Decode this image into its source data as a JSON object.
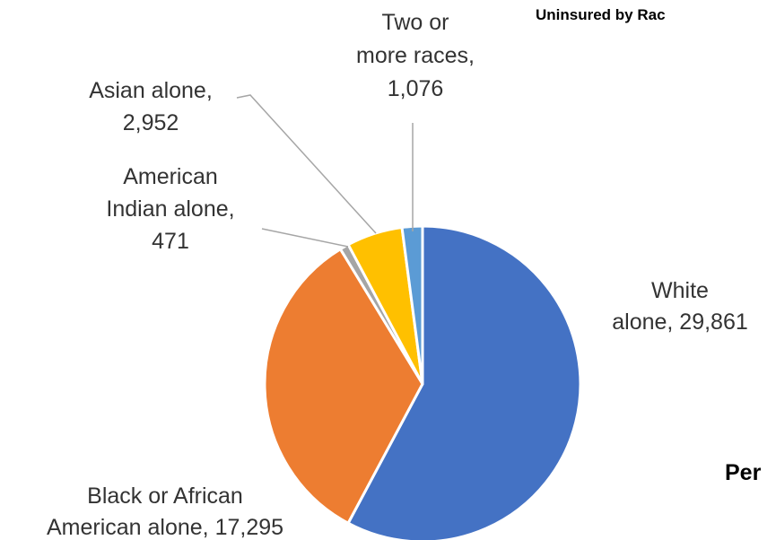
{
  "title": "Uninsured by Rac",
  "side_text": "Per",
  "chart_data": {
    "type": "pie",
    "title": "Uninsured by Rac",
    "categories": [
      "White alone",
      "Black or African American alone",
      "American Indian alone",
      "Asian alone",
      "Two or more races"
    ],
    "values": [
      29861,
      17295,
      471,
      2952,
      1076
    ],
    "colors": [
      "#4472c4",
      "#ed7d31",
      "#a5a5a5",
      "#ffc000",
      "#5b9bd5"
    ],
    "data_labels": [
      [
        "White",
        "alone, 29,861"
      ],
      [
        "Black or African",
        "American alone, 17,295"
      ],
      [
        "American",
        "Indian alone,",
        "471"
      ],
      [
        "Asian alone,",
        "2,952"
      ],
      [
        "Two or",
        "more races,",
        "1,076"
      ]
    ],
    "start_angle": "12 o'clock",
    "direction": "clockwise"
  }
}
